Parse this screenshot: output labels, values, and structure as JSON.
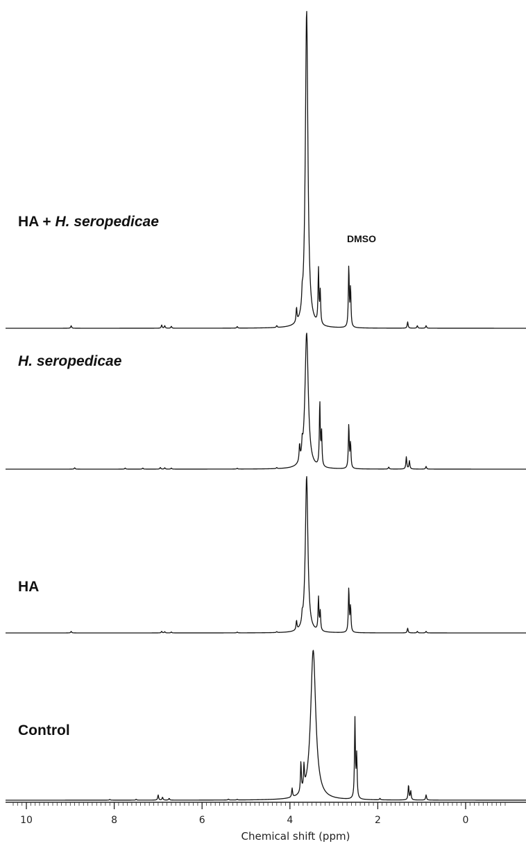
{
  "chart_data": {
    "type": "line",
    "xlabel": "Chemical shift (ppm)",
    "xlim": [
      10.3,
      -0.9
    ],
    "x_reversed": true,
    "ticks": [
      10,
      8,
      6,
      4,
      2,
      0
    ],
    "minor_tick_step": 0.1,
    "annotation": {
      "text": "DMSO",
      "x": 2.68
    },
    "series": [
      {
        "label_main": "HA + ",
        "label_italic": "H. seropedicae",
        "peaks": [
          {
            "x": 8.98,
            "h": 0.008
          },
          {
            "x": 6.92,
            "h": 0.01
          },
          {
            "x": 6.85,
            "h": 0.008
          },
          {
            "x": 6.7,
            "h": 0.006
          },
          {
            "x": 5.2,
            "h": 0.005
          },
          {
            "x": 4.3,
            "h": 0.006
          },
          {
            "x": 3.85,
            "h": 0.045
          },
          {
            "x": 3.72,
            "h": 0.04
          },
          {
            "x": 3.62,
            "h": 1.0,
            "w": 0.035
          },
          {
            "x": 3.35,
            "h": 0.17
          },
          {
            "x": 3.31,
            "h": 0.1
          },
          {
            "x": 2.66,
            "h": 0.19
          },
          {
            "x": 2.62,
            "h": 0.12
          },
          {
            "x": 1.32,
            "h": 0.02
          },
          {
            "x": 1.1,
            "h": 0.008
          },
          {
            "x": 0.9,
            "h": 0.008
          }
        ]
      },
      {
        "label_main": "",
        "label_italic": "H. seropedicae",
        "peaks": [
          {
            "x": 8.9,
            "h": 0.01
          },
          {
            "x": 7.75,
            "h": 0.008
          },
          {
            "x": 7.35,
            "h": 0.008
          },
          {
            "x": 6.95,
            "h": 0.012
          },
          {
            "x": 6.85,
            "h": 0.01
          },
          {
            "x": 6.7,
            "h": 0.008
          },
          {
            "x": 5.2,
            "h": 0.006
          },
          {
            "x": 4.3,
            "h": 0.008
          },
          {
            "x": 3.78,
            "h": 0.12
          },
          {
            "x": 3.72,
            "h": 0.09
          },
          {
            "x": 3.62,
            "h": 1.0,
            "w": 0.045
          },
          {
            "x": 3.32,
            "h": 0.47
          },
          {
            "x": 3.28,
            "h": 0.25
          },
          {
            "x": 2.66,
            "h": 0.32
          },
          {
            "x": 2.62,
            "h": 0.18
          },
          {
            "x": 1.75,
            "h": 0.015
          },
          {
            "x": 1.35,
            "h": 0.09
          },
          {
            "x": 1.28,
            "h": 0.06
          },
          {
            "x": 0.9,
            "h": 0.02
          }
        ]
      },
      {
        "label_main": "HA",
        "label_italic": "",
        "peaks": [
          {
            "x": 8.98,
            "h": 0.01
          },
          {
            "x": 6.92,
            "h": 0.01
          },
          {
            "x": 6.85,
            "h": 0.008
          },
          {
            "x": 6.7,
            "h": 0.006
          },
          {
            "x": 5.2,
            "h": 0.005
          },
          {
            "x": 4.3,
            "h": 0.006
          },
          {
            "x": 3.85,
            "h": 0.06
          },
          {
            "x": 3.72,
            "h": 0.05
          },
          {
            "x": 3.62,
            "h": 1.0,
            "w": 0.035
          },
          {
            "x": 3.35,
            "h": 0.21
          },
          {
            "x": 3.31,
            "h": 0.12
          },
          {
            "x": 2.66,
            "h": 0.28
          },
          {
            "x": 2.62,
            "h": 0.16
          },
          {
            "x": 1.32,
            "h": 0.03
          },
          {
            "x": 1.1,
            "h": 0.01
          },
          {
            "x": 0.9,
            "h": 0.01
          }
        ]
      },
      {
        "label_main": "Control",
        "label_italic": "",
        "peaks": [
          {
            "x": 8.1,
            "h": 0.005
          },
          {
            "x": 7.5,
            "h": 0.006
          },
          {
            "x": 7.0,
            "h": 0.035
          },
          {
            "x": 6.9,
            "h": 0.02
          },
          {
            "x": 6.75,
            "h": 0.012
          },
          {
            "x": 5.4,
            "h": 0.006
          },
          {
            "x": 5.2,
            "h": 0.004
          },
          {
            "x": 3.95,
            "h": 0.06
          },
          {
            "x": 3.75,
            "h": 0.2
          },
          {
            "x": 3.68,
            "h": 0.15
          },
          {
            "x": 3.47,
            "h": 1.0,
            "w": 0.07
          },
          {
            "x": 2.52,
            "h": 0.53
          },
          {
            "x": 2.48,
            "h": 0.28
          },
          {
            "x": 1.95,
            "h": 0.01
          },
          {
            "x": 1.3,
            "h": 0.1
          },
          {
            "x": 1.25,
            "h": 0.06
          },
          {
            "x": 0.9,
            "h": 0.035
          }
        ]
      }
    ]
  }
}
